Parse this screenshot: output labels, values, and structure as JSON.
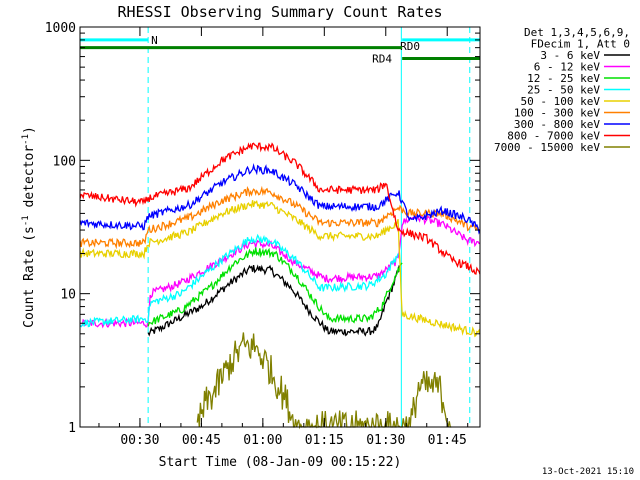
{
  "chart_data": {
    "type": "line",
    "title": "RHESSI Observing Summary Count Rates",
    "xlabel": "Start Time (08-Jan-09 00:15:22)",
    "ylabel_parts": [
      "Count Rate (s",
      "-1",
      " detector",
      "-1",
      ")"
    ],
    "yscale": "log",
    "ylim": [
      1,
      1000
    ],
    "xlim_minutes": [
      15.37,
      113
    ],
    "x_ticks": [
      {
        "label": "00:30",
        "minute": 30
      },
      {
        "label": "00:45",
        "minute": 45
      },
      {
        "label": "01:00",
        "minute": 60
      },
      {
        "label": "01:15",
        "minute": 75
      },
      {
        "label": "01:30",
        "minute": 90
      },
      {
        "label": "01:45",
        "minute": 105
      }
    ],
    "y_ticks": [
      {
        "label": "1",
        "value": 1
      },
      {
        "label": "10",
        "value": 10
      },
      {
        "label": "100",
        "value": 100
      },
      {
        "label": "1000",
        "value": 1000
      }
    ],
    "legend_header": [
      "Det 1,3,4,5,6,9,",
      "FDecim 1, Att 0"
    ],
    "series": [
      {
        "name": "3 - 6 keV",
        "color": "#000000",
        "points": [
          [
            32,
            5
          ],
          [
            35,
            5.5
          ],
          [
            45,
            8
          ],
          [
            52,
            12
          ],
          [
            57,
            15.5
          ],
          [
            62,
            15
          ],
          [
            67,
            11
          ],
          [
            72,
            7
          ],
          [
            76,
            5.2
          ],
          [
            86,
            5.2
          ],
          [
            88,
            5.5
          ],
          [
            90,
            8.5
          ],
          [
            92,
            12
          ],
          [
            93.5,
            16
          ]
        ]
      },
      {
        "name": "6 - 12 keV",
        "color": "#ff00ff",
        "points": [
          [
            15.4,
            6
          ],
          [
            32,
            6
          ],
          [
            32.5,
            10
          ],
          [
            40,
            12
          ],
          [
            50,
            18
          ],
          [
            57,
            24
          ],
          [
            62,
            23
          ],
          [
            68,
            17
          ],
          [
            75,
            13
          ],
          [
            88,
            13.5
          ],
          [
            90,
            15
          ],
          [
            93,
            18
          ],
          [
            94,
            34
          ],
          [
            97,
            38
          ],
          [
            104,
            33
          ],
          [
            110,
            25
          ],
          [
            113,
            24
          ]
        ]
      },
      {
        "name": "12 - 25 keV",
        "color": "#00e000",
        "points": [
          [
            32,
            6
          ],
          [
            40,
            7.5
          ],
          [
            47,
            11
          ],
          [
            53,
            17
          ],
          [
            58,
            21
          ],
          [
            63,
            20
          ],
          [
            68,
            14
          ],
          [
            73,
            8.5
          ],
          [
            76,
            6.5
          ],
          [
            86,
            6.5
          ],
          [
            89,
            8
          ],
          [
            92,
            13
          ],
          [
            94,
            17
          ]
        ]
      },
      {
        "name": "25 - 50 keV",
        "color": "#00ffff",
        "points": [
          [
            15.4,
            6
          ],
          [
            32,
            6.5
          ],
          [
            32.5,
            8.5
          ],
          [
            40,
            10
          ],
          [
            50,
            18
          ],
          [
            57,
            26
          ],
          [
            62,
            25
          ],
          [
            68,
            18
          ],
          [
            74,
            11
          ],
          [
            86,
            11.5
          ],
          [
            90,
            14
          ],
          [
            93,
            20
          ]
        ]
      },
      {
        "name": "50 - 100 keV",
        "color": "#e8d000",
        "points": [
          [
            15.4,
            20
          ],
          [
            31,
            20
          ],
          [
            32,
            24
          ],
          [
            42,
            29
          ],
          [
            50,
            40
          ],
          [
            57,
            47
          ],
          [
            62,
            46
          ],
          [
            68,
            36
          ],
          [
            74,
            27
          ],
          [
            88,
            27
          ],
          [
            90,
            30
          ],
          [
            93,
            34
          ],
          [
            94,
            7
          ],
          [
            113,
            5
          ]
        ]
      },
      {
        "name": "100 - 300 keV",
        "color": "#ff8000",
        "points": [
          [
            15.4,
            24
          ],
          [
            31,
            24
          ],
          [
            32,
            30
          ],
          [
            42,
            37
          ],
          [
            50,
            50
          ],
          [
            57,
            59
          ],
          [
            62,
            58
          ],
          [
            68,
            46
          ],
          [
            74,
            34
          ],
          [
            88,
            34
          ],
          [
            90,
            38
          ],
          [
            93,
            44
          ],
          [
            96,
            40
          ],
          [
            104,
            40
          ],
          [
            110,
            32
          ],
          [
            113,
            30
          ]
        ]
      },
      {
        "name": "300 - 800 keV",
        "color": "#0000ff",
        "points": [
          [
            15.4,
            34
          ],
          [
            31,
            32
          ],
          [
            32,
            38
          ],
          [
            42,
            46
          ],
          [
            50,
            68
          ],
          [
            57,
            86
          ],
          [
            62,
            84
          ],
          [
            68,
            65
          ],
          [
            74,
            45
          ],
          [
            88,
            45
          ],
          [
            90,
            50
          ],
          [
            93,
            58
          ],
          [
            96,
            35
          ],
          [
            104,
            42
          ],
          [
            110,
            36
          ],
          [
            113,
            30
          ]
        ]
      },
      {
        "name": "800 - 7000 keV",
        "color": "#ff0000",
        "points": [
          [
            15.4,
            55
          ],
          [
            31,
            48
          ],
          [
            32,
            52
          ],
          [
            42,
            62
          ],
          [
            50,
            100
          ],
          [
            57,
            128
          ],
          [
            62,
            126
          ],
          [
            68,
            95
          ],
          [
            74,
            60
          ],
          [
            88,
            60
          ],
          [
            90,
            68
          ],
          [
            93,
            30
          ],
          [
            100,
            26
          ],
          [
            106,
            18
          ],
          [
            110,
            16
          ],
          [
            113,
            14
          ]
        ]
      },
      {
        "name": "7000 - 15000 keV",
        "color": "#808000",
        "points": [
          [
            44,
            1
          ],
          [
            46,
            1.5
          ],
          [
            48,
            1.8
          ],
          [
            52,
            3
          ],
          [
            55,
            4
          ],
          [
            58,
            4
          ],
          [
            61,
            3
          ],
          [
            64,
            2
          ],
          [
            66,
            1.5
          ],
          [
            68,
            1
          ],
          [
            96,
            1
          ],
          [
            98,
            2
          ],
          [
            103,
            2
          ],
          [
            106,
            1
          ]
        ]
      }
    ],
    "annotations": [
      {
        "label": "N",
        "color": "#00ffff",
        "value": 800,
        "x_start": 15.4,
        "x_end": 32
      },
      {
        "label": "RD0",
        "color": "#00ffff",
        "value": 800,
        "x_start": 94,
        "x_end": 113
      },
      {
        "label": "RD4",
        "color": "#008000",
        "value": 580,
        "x_start": 94,
        "x_end": 113
      },
      {
        "label": "",
        "color": "#008000",
        "value": 700,
        "x_start": 15.4,
        "x_end": 94
      }
    ],
    "vertical_lines": [
      {
        "minute": 32,
        "color": "#00ffff",
        "style": "dashed"
      },
      {
        "minute": 93.8,
        "color": "#00ffff",
        "style": "solid"
      },
      {
        "minute": 110.5,
        "color": "#00ffff",
        "style": "dashed"
      }
    ]
  },
  "footer": {
    "timestamp": "13-Oct-2021 15:10"
  }
}
